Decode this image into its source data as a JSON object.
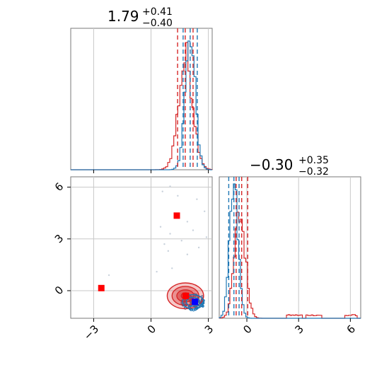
{
  "colors": {
    "blue": "#1f77b4",
    "red": "#d62728",
    "grid": "#c8c8c8",
    "frame": "#7a7a7a",
    "marker_red": "#ff0000",
    "marker_blue": "#0000ff"
  },
  "chart_data": {
    "type": "corner",
    "grid": true,
    "params": [
      {
        "title": "1.79",
        "title_sup": "+0.41",
        "title_sub": "−0.40",
        "range": [
          -4.2,
          3.2
        ]
      },
      {
        "title": "−0.30",
        "title_sup": "+0.35",
        "title_sub": "−0.32",
        "range": [
          -1.6,
          6.6
        ]
      }
    ],
    "ticks": {
      "x1": {
        "values": [
          -3,
          0,
          3
        ],
        "labels": [
          "−3",
          "0",
          "3"
        ]
      },
      "x2": {
        "values": [
          0,
          3,
          6
        ],
        "labels": [
          "0",
          "3",
          "6"
        ]
      },
      "y2": {
        "values": [
          0,
          3,
          6
        ],
        "labels": [
          "0",
          "3",
          "6"
        ]
      }
    },
    "hist_p1": {
      "blue": {
        "center": 2.05,
        "sigma": 0.27,
        "quantiles": [
          1.68,
          2.05,
          2.42
        ]
      },
      "red": {
        "center": 1.82,
        "sigma": 0.38,
        "quantiles": [
          1.39,
          1.79,
          2.2
        ]
      }
    },
    "hist_p2": {
      "blue": {
        "center": -0.75,
        "sigma": 0.25,
        "quantiles": [
          -1.05,
          -0.75,
          -0.45
        ]
      },
      "red": {
        "center": -0.4,
        "sigma": 0.32,
        "quantiles": [
          -0.62,
          -0.3,
          0.05
        ]
      },
      "red_tail": [
        [
          2.3,
          3.2
        ],
        [
          3.4,
          4.3
        ],
        [
          5.7,
          6.4
        ]
      ]
    },
    "scatter": {
      "blue_center": [
        2.2,
        -0.65
      ],
      "red_center": [
        1.8,
        -0.3
      ],
      "markers_red": [
        [
          -2.6,
          0.15
        ],
        [
          1.35,
          4.35
        ],
        [
          1.82,
          -0.3
        ]
      ],
      "markers_blue": [
        [
          2.3,
          -0.65
        ]
      ],
      "outliers": [
        [
          1.0,
          6.05
        ],
        [
          0.6,
          5.75
        ],
        [
          1.4,
          5.5
        ],
        [
          2.4,
          5.3
        ],
        [
          2.8,
          4.6
        ],
        [
          1.9,
          4.0
        ],
        [
          0.5,
          3.7
        ],
        [
          2.2,
          3.5
        ],
        [
          1.0,
          3.3
        ],
        [
          2.9,
          3.1
        ],
        [
          0.7,
          2.7
        ],
        [
          1.6,
          2.9
        ],
        [
          2.5,
          2.5
        ],
        [
          0.9,
          2.3
        ],
        [
          1.9,
          2.1
        ],
        [
          -2.2,
          0.9
        ],
        [
          0.3,
          1.1
        ],
        [
          1.1,
          1.3
        ]
      ]
    }
  }
}
